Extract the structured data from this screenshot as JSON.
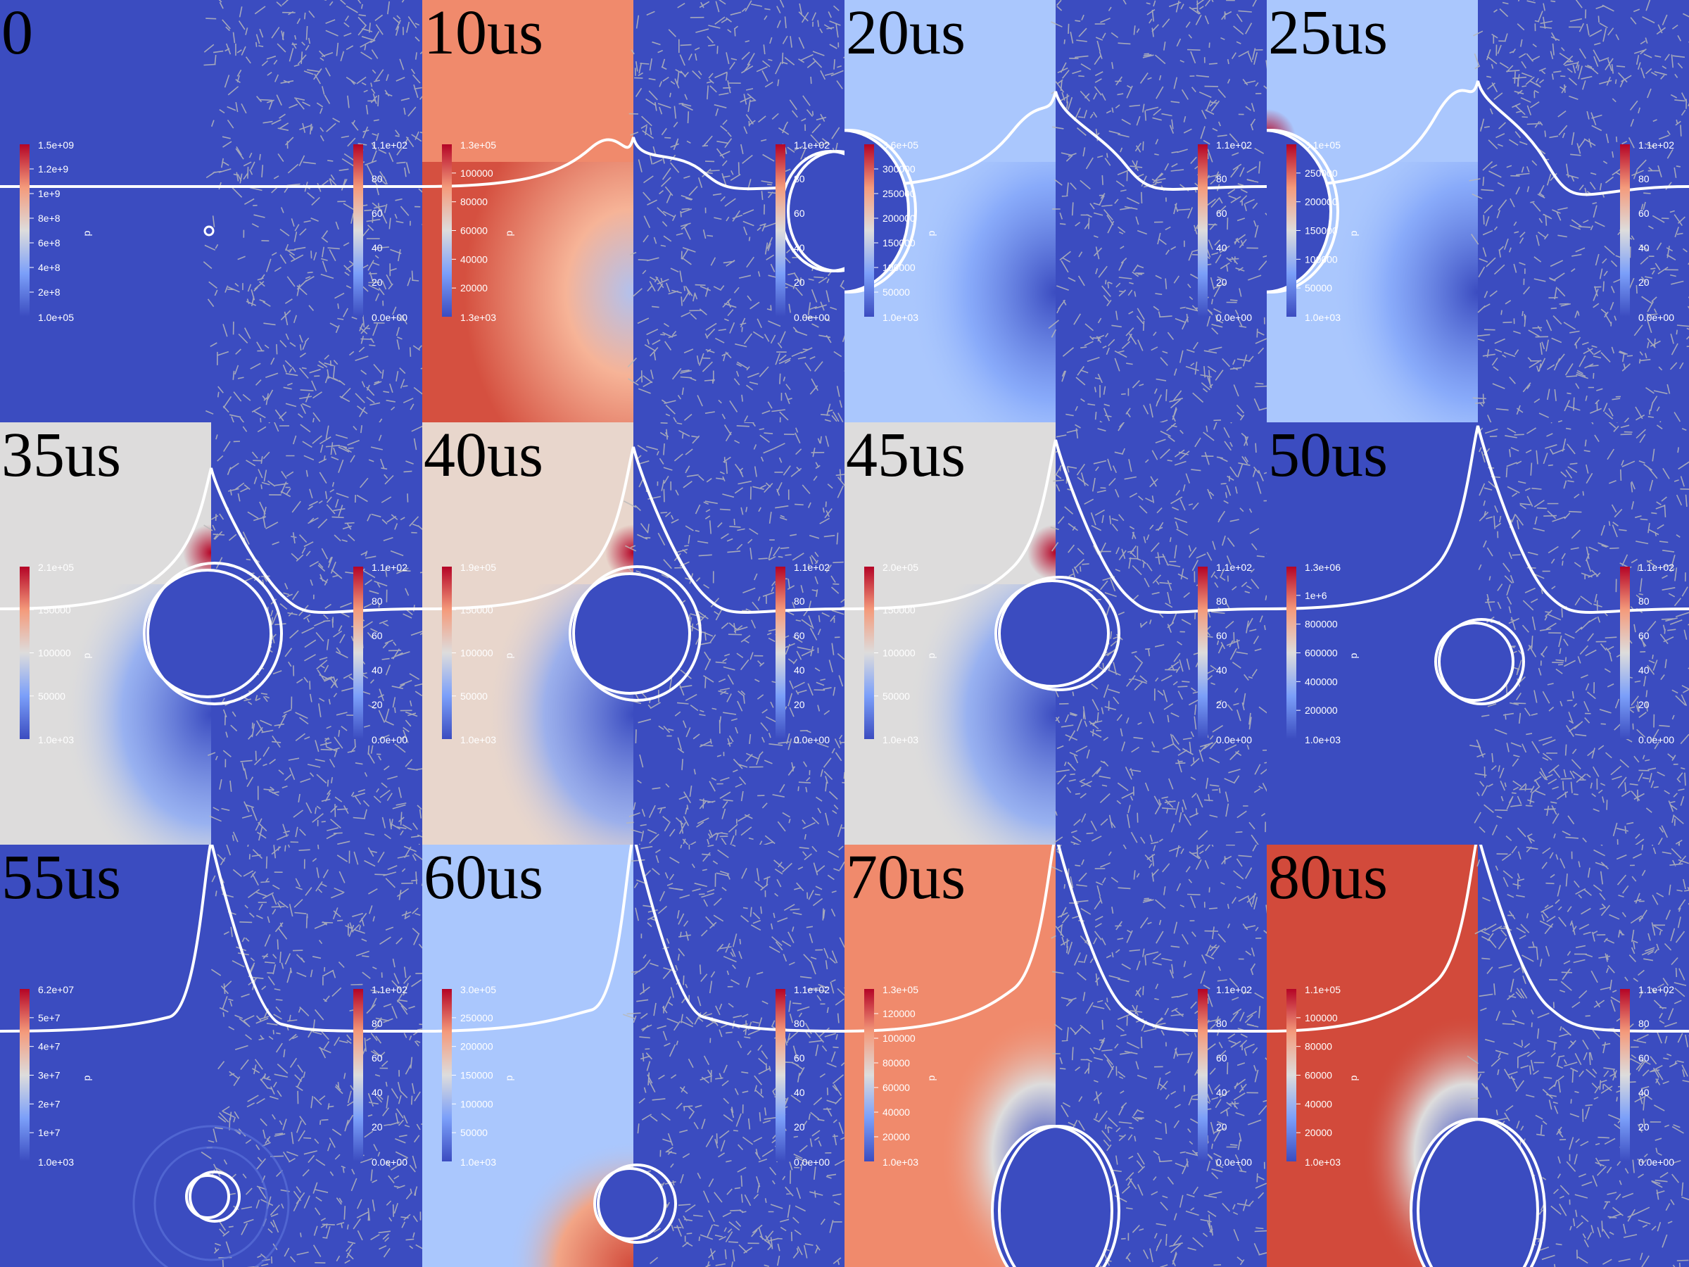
{
  "colors": {
    "blue": "#3b4cc0",
    "light_blue": "#aac7fd",
    "pale": "#dddcdc",
    "peach": "#e8d6cc",
    "salmon": "#f08a6c",
    "red": "#d24a3b",
    "dark_red": "#b40426",
    "interface": "#ffffff",
    "arrows": "#b9b9b9"
  },
  "colorbar_p_var": "p",
  "colorbar_vel_top": "1.1e+02",
  "colorbar_vel_ticks": [
    "80",
    "60",
    "40",
    "20"
  ],
  "colorbar_vel_bottom": "0.0e+00",
  "frames": [
    {
      "time": "0",
      "p_top": "1.5e+09",
      "p_ticks": [
        "1.2e+9",
        "1e+9",
        "8e+8",
        "6e+8",
        "4e+8",
        "2e+8"
      ],
      "p_bottom": "1.0e+05",
      "bg": "blue"
    },
    {
      "time": "10us",
      "p_top": "1.3e+05",
      "p_ticks": [
        "100000",
        "80000",
        "60000",
        "40000",
        "20000"
      ],
      "p_bottom": "1.3e+03",
      "bg": "salmon"
    },
    {
      "time": "20us",
      "p_top": "3.6e+05",
      "p_ticks": [
        "300000",
        "250000",
        "200000",
        "150000",
        "100000",
        "50000"
      ],
      "p_bottom": "1.0e+03",
      "bg": "light_blue"
    },
    {
      "time": "25us",
      "p_top": "3.1e+05",
      "p_ticks": [
        "250000",
        "200000",
        "150000",
        "100000",
        "50000"
      ],
      "p_bottom": "1.0e+03",
      "bg": "light_blue"
    },
    {
      "time": "35us",
      "p_top": "2.1e+05",
      "p_ticks": [
        "150000",
        "100000",
        "50000"
      ],
      "p_bottom": "1.0e+03",
      "bg": "pale"
    },
    {
      "time": "40us",
      "p_top": "1.9e+05",
      "p_ticks": [
        "150000",
        "100000",
        "50000"
      ],
      "p_bottom": "1.0e+03",
      "bg": "peach"
    },
    {
      "time": "45us",
      "p_top": "2.0e+05",
      "p_ticks": [
        "150000",
        "100000",
        "50000"
      ],
      "p_bottom": "1.0e+03",
      "bg": "pale"
    },
    {
      "time": "50us",
      "p_top": "1.3e+06",
      "p_ticks": [
        "1e+6",
        "800000",
        "600000",
        "400000",
        "200000"
      ],
      "p_bottom": "1.0e+03",
      "bg": "blue"
    },
    {
      "time": "55us",
      "p_top": "6.2e+07",
      "p_ticks": [
        "5e+7",
        "4e+7",
        "3e+7",
        "2e+7",
        "1e+7"
      ],
      "p_bottom": "1.0e+03",
      "bg": "blue"
    },
    {
      "time": "60us",
      "p_top": "3.0e+05",
      "p_ticks": [
        "250000",
        "200000",
        "150000",
        "100000",
        "50000"
      ],
      "p_bottom": "1.0e+03",
      "bg": "light_blue"
    },
    {
      "time": "70us",
      "p_top": "1.3e+05",
      "p_ticks": [
        "120000",
        "100000",
        "80000",
        "60000",
        "40000",
        "20000"
      ],
      "p_bottom": "1.0e+03",
      "bg": "salmon"
    },
    {
      "time": "80us",
      "p_top": "1.1e+05",
      "p_ticks": [
        "100000",
        "80000",
        "60000",
        "40000",
        "20000"
      ],
      "p_bottom": "1.0e+03",
      "bg": "red"
    }
  ]
}
